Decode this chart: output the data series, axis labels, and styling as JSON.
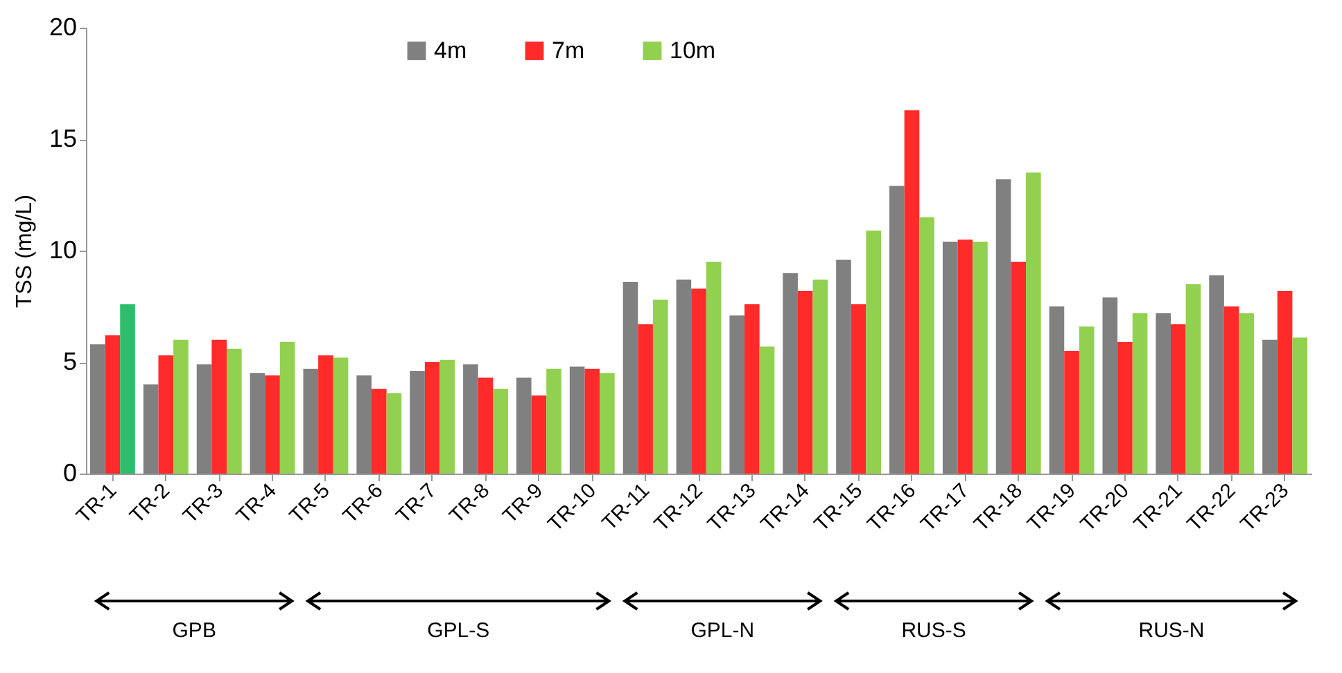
{
  "chart_data": {
    "type": "bar",
    "ylabel": "TSS (mg/L)",
    "categories": [
      "TR-1",
      "TR-2",
      "TR-3",
      "TR-4",
      "TR-5",
      "TR-6",
      "TR-7",
      "TR-8",
      "TR-9",
      "TR-10",
      "TR-11",
      "TR-12",
      "TR-13",
      "TR-14",
      "TR-15",
      "TR-16",
      "TR-17",
      "TR-18",
      "TR-19",
      "TR-20",
      "TR-21",
      "TR-22",
      "TR-23"
    ],
    "series": [
      {
        "name": "4m",
        "color": "#808080",
        "values": [
          5.8,
          4.0,
          4.9,
          4.5,
          4.7,
          4.4,
          4.6,
          4.9,
          4.3,
          4.8,
          8.6,
          8.7,
          7.1,
          9.0,
          9.6,
          12.9,
          10.4,
          13.2,
          7.5,
          7.9,
          7.2,
          8.9,
          6.0
        ]
      },
      {
        "name": "7m",
        "color": "#ff2a2a",
        "values": [
          6.2,
          5.3,
          6.0,
          4.4,
          5.3,
          3.8,
          5.0,
          4.3,
          3.5,
          4.7,
          6.7,
          8.3,
          7.6,
          8.2,
          7.6,
          16.3,
          10.5,
          9.5,
          5.5,
          5.9,
          6.7,
          7.5,
          8.2
        ]
      },
      {
        "name": "10m",
        "color": "#92d050",
        "colors": [
          "#2ebd6b",
          "#92d050",
          "#92d050",
          "#92d050",
          "#92d050",
          "#92d050",
          "#92d050",
          "#92d050",
          "#92d050",
          "#92d050",
          "#92d050",
          "#92d050",
          "#92d050",
          "#92d050",
          "#92d050",
          "#92d050",
          "#92d050",
          "#92d050",
          "#92d050",
          "#92d050",
          "#92d050",
          "#92d050",
          "#92d050"
        ],
        "values": [
          7.6,
          6.0,
          5.6,
          5.9,
          5.2,
          3.6,
          5.1,
          3.8,
          4.7,
          4.5,
          7.8,
          9.5,
          5.7,
          8.7,
          10.9,
          11.5,
          10.4,
          13.5,
          6.6,
          7.2,
          8.5,
          7.2,
          6.1
        ]
      }
    ],
    "ylim": [
      0,
      20
    ],
    "yticks": [
      0,
      5,
      10,
      15,
      20
    ],
    "grid": false,
    "legend": "top",
    "annotations": [
      "GPB",
      "GPL-S",
      "GPL-N",
      "RUS-S",
      "RUS-N"
    ]
  }
}
